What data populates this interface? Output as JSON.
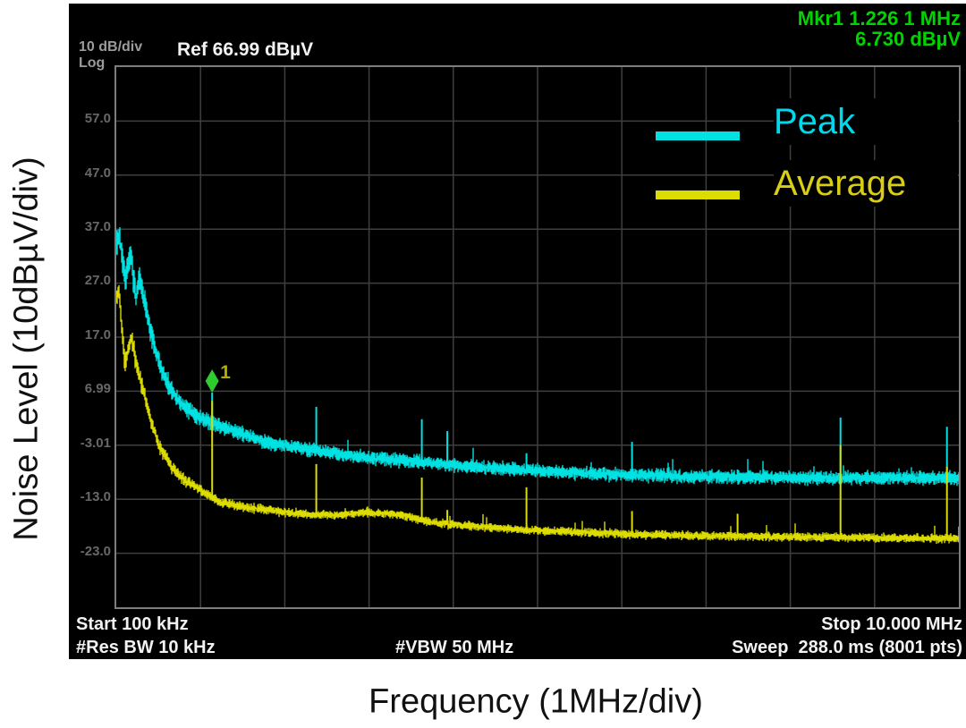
{
  "axis_titles": {
    "y": "Noise Level (10dBµV/div)",
    "x": "Frequency (1MHz/div)"
  },
  "instrument": {
    "scale_label": "10 dB/div",
    "log_label": "Log",
    "ref_label": "Ref 66.99 dBµV",
    "marker_readout_line1": "Mkr1 1.226 1 MHz",
    "marker_readout_line2": "6.730 dBµV",
    "start_label": "Start 100 kHz",
    "stop_label": "Stop 10.000 MHz",
    "res_bw_label": "#Res BW 10 kHz",
    "vbw_label": "#VBW 50 MHz",
    "sweep_label": "Sweep  288.0 ms (8001 pts)"
  },
  "colors": {
    "marker_green_text": "#00d300",
    "marker_diamond_green": "#2ecc2e",
    "marker_number_olive": "#b5aa00",
    "peak_trace": "#00e2e2",
    "average_trace": "#dcdc00",
    "peak_label": "#00d9ec",
    "average_label": "#d9ce14",
    "grid": "#3f3f3f",
    "plot_border": "#7d7d7d"
  },
  "legend": {
    "items": [
      {
        "label": "Peak",
        "color": "#00e2e2",
        "text_color": "#00d9ec"
      },
      {
        "label": "Average",
        "color": "#dcdc00",
        "text_color": "#d9ce14"
      }
    ]
  },
  "chart_data": {
    "type": "line",
    "title": "Spectrum analyzer noise level sweep",
    "xlabel": "Frequency (1MHz/div)",
    "ylabel": "Noise Level (10dBµV/div)",
    "x_unit": "MHz",
    "y_unit": "dBµV",
    "x_range": [
      0.1,
      10.0
    ],
    "y_range": [
      -33.01,
      66.99
    ],
    "y_ref": 66.99,
    "db_per_div": 10,
    "x_divs": 10,
    "y_divs": 10,
    "grid": true,
    "legend_position": "top-right",
    "y_tick_labels": [
      "57.0",
      "47.0",
      "37.0",
      "27.0",
      "17.0",
      "6.99",
      "-3.01",
      "-13.0",
      "-23.0"
    ],
    "start_freq": "100 kHz",
    "stop_freq": "10.000 MHz",
    "marker": {
      "id": "1",
      "freq_mhz": 1.2261,
      "level_dbuv": 6.73
    },
    "series": [
      {
        "name": "Peak",
        "color": "#00e2e2",
        "noise_db": 1.7,
        "seed": 101,
        "points": [
          [
            0.1,
            34.7
          ],
          [
            0.13,
            35.8
          ],
          [
            0.21,
            27.8
          ],
          [
            0.27,
            32.4
          ],
          [
            0.33,
            24.4
          ],
          [
            0.37,
            28.6
          ],
          [
            0.46,
            21.1
          ],
          [
            0.56,
            14.5
          ],
          [
            0.7,
            8.2
          ],
          [
            0.86,
            4.6
          ],
          [
            1.07,
            2.1
          ],
          [
            1.28,
            0.8
          ],
          [
            1.59,
            -1.0
          ],
          [
            1.91,
            -2.7
          ],
          [
            2.33,
            -3.7
          ],
          [
            2.75,
            -4.7
          ],
          [
            3.27,
            -5.7
          ],
          [
            3.8,
            -6.3
          ],
          [
            4.32,
            -7.0
          ],
          [
            4.85,
            -7.6
          ],
          [
            5.48,
            -8.1
          ],
          [
            6.11,
            -8.5
          ],
          [
            6.95,
            -8.8
          ],
          [
            8.21,
            -9.0
          ],
          [
            10.0,
            -9.1
          ]
        ]
      },
      {
        "name": "Average",
        "color": "#dcdc00",
        "noise_db": 1.1,
        "seed": 202,
        "points": [
          [
            0.1,
            24.4
          ],
          [
            0.13,
            26.0
          ],
          [
            0.2,
            12.0
          ],
          [
            0.28,
            17.0
          ],
          [
            0.33,
            12.5
          ],
          [
            0.4,
            8.0
          ],
          [
            0.5,
            2.0
          ],
          [
            0.6,
            -3.0
          ],
          [
            0.75,
            -7.0
          ],
          [
            0.9,
            -9.5
          ],
          [
            1.07,
            -11.0
          ],
          [
            1.28,
            -13.3
          ],
          [
            1.6,
            -14.5
          ],
          [
            1.9,
            -15.0
          ],
          [
            2.3,
            -15.8
          ],
          [
            2.7,
            -16.0
          ],
          [
            3.0,
            -15.5
          ],
          [
            3.4,
            -15.8
          ],
          [
            3.9,
            -17.5
          ],
          [
            4.9,
            -18.7
          ],
          [
            6.1,
            -19.5
          ],
          [
            7.0,
            -19.8
          ],
          [
            8.2,
            -20.0
          ],
          [
            10.0,
            -20.3
          ]
        ]
      }
    ],
    "spikes": [
      {
        "freq_mhz": 1.2261,
        "peak_dbuv": 6.73,
        "avg_dbuv": 5.2
      },
      {
        "freq_mhz": 2.45,
        "peak_dbuv": 4.1,
        "avg_dbuv": -6.5
      },
      {
        "freq_mhz": 3.69,
        "peak_dbuv": 1.8,
        "avg_dbuv": -9.0
      },
      {
        "freq_mhz": 3.99,
        "peak_dbuv": -0.4,
        "avg_dbuv": -15.0
      },
      {
        "freq_mhz": 4.92,
        "peak_dbuv": -4.5,
        "avg_dbuv": -10.8
      },
      {
        "freq_mhz": 6.16,
        "peak_dbuv": -2.4,
        "avg_dbuv": -15.2
      },
      {
        "freq_mhz": 7.4,
        "peak_dbuv": -7.5,
        "avg_dbuv": -15.7
      },
      {
        "freq_mhz": 8.61,
        "peak_dbuv": 2.1,
        "avg_dbuv": -3.0
      },
      {
        "freq_mhz": 9.86,
        "peak_dbuv": 0.4,
        "avg_dbuv": -7.0
      }
    ]
  }
}
